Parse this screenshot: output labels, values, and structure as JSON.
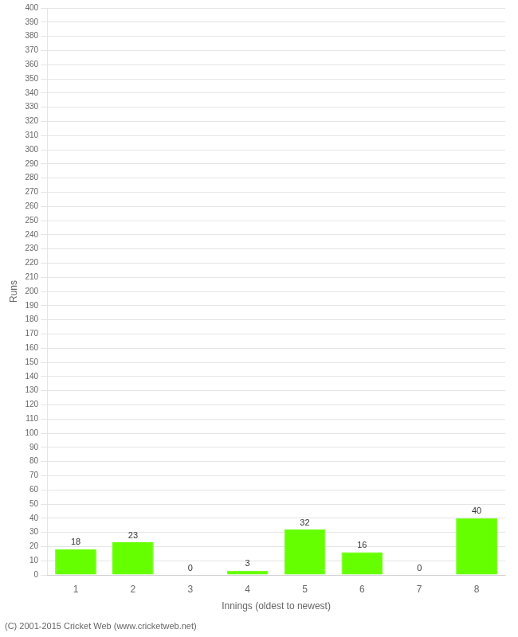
{
  "chart_data": {
    "type": "bar",
    "categories": [
      "1",
      "2",
      "3",
      "4",
      "5",
      "6",
      "7",
      "8"
    ],
    "values": [
      18,
      23,
      0,
      3,
      32,
      16,
      0,
      40
    ],
    "color": "#66ff00",
    "xlabel": "Innings (oldest to newest)",
    "ylabel": "Runs",
    "ylim": [
      0,
      400
    ],
    "yticks": [
      0,
      10,
      20,
      30,
      40,
      50,
      60,
      70,
      80,
      90,
      100,
      110,
      120,
      130,
      140,
      150,
      160,
      170,
      180,
      190,
      200,
      210,
      220,
      230,
      240,
      250,
      260,
      270,
      280,
      290,
      300,
      310,
      320,
      330,
      340,
      350,
      360,
      370,
      380,
      390,
      400
    ],
    "grid": true,
    "data_labels": true,
    "annotations": [
      "(C) 2001-2015 Cricket Web (www.cricketweb.net)"
    ]
  }
}
